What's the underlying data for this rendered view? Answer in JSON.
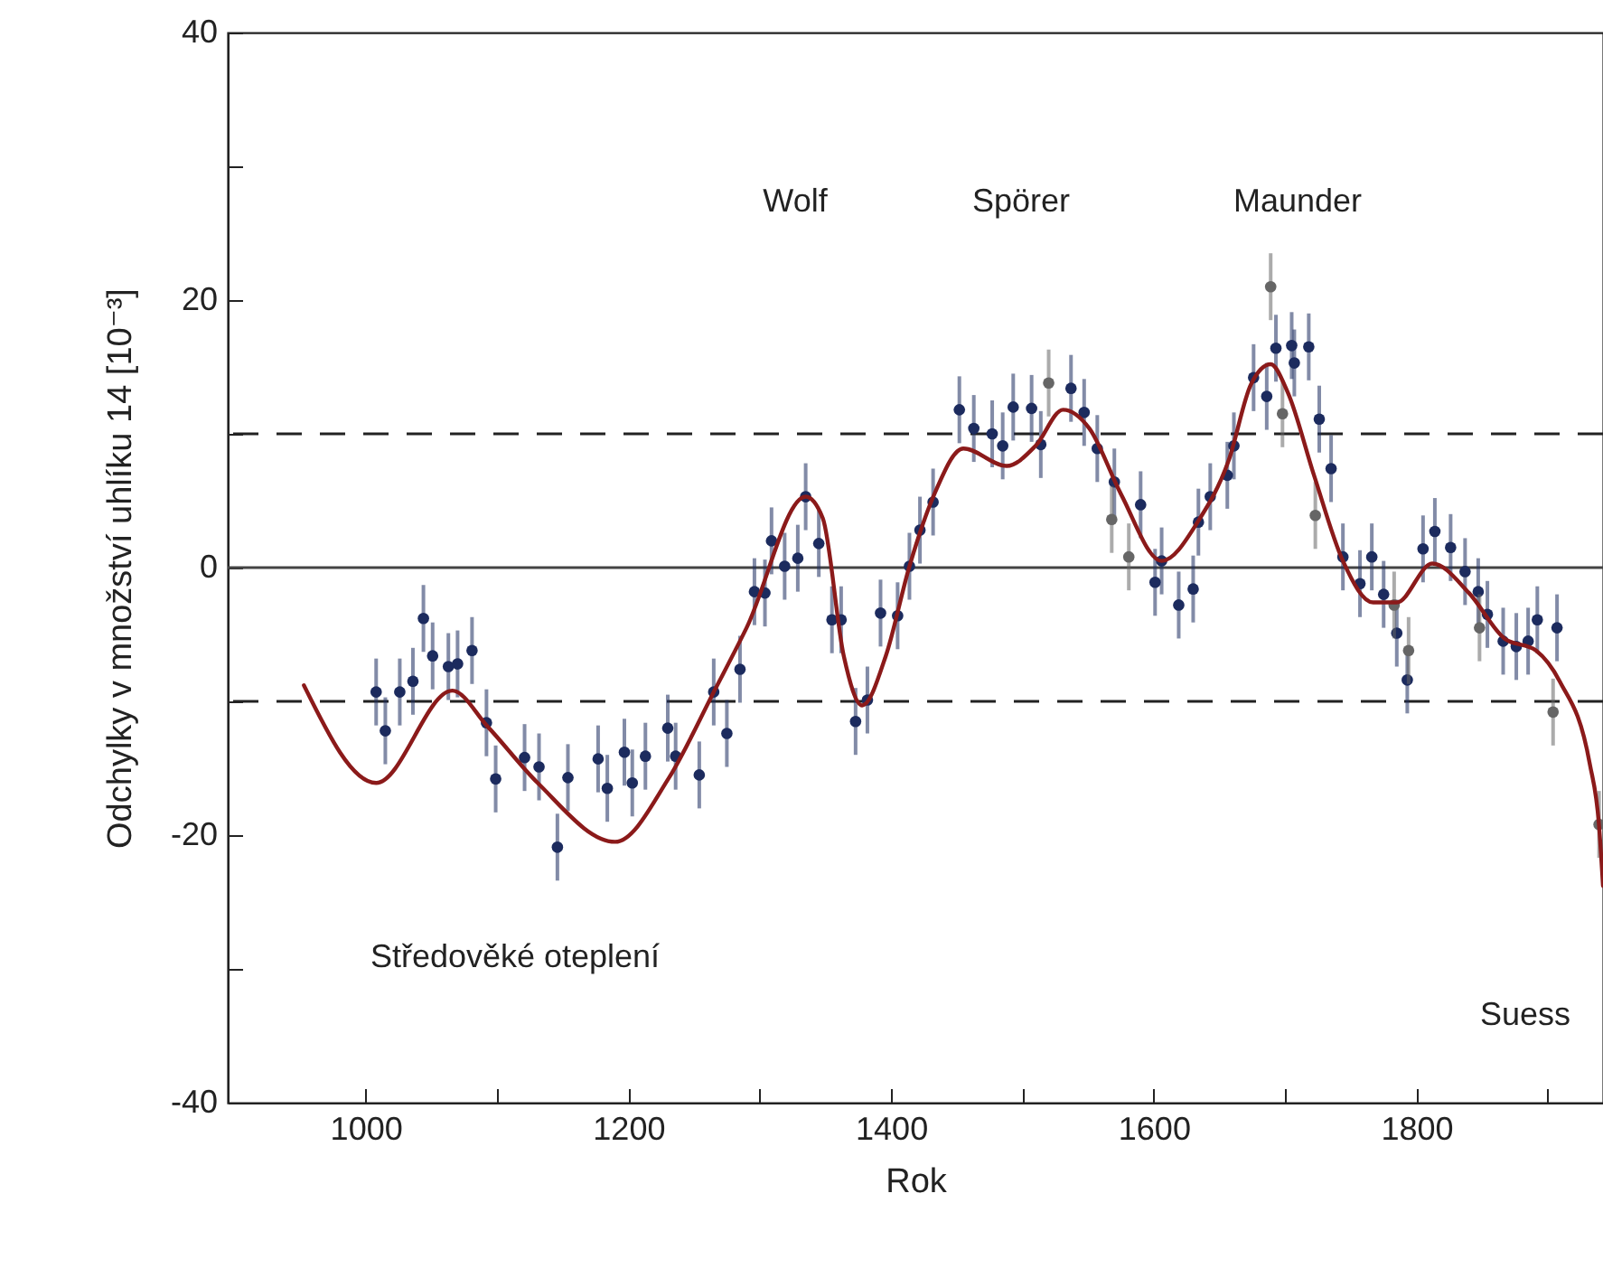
{
  "chart_data": {
    "type": "scatter",
    "xlabel": "Rok",
    "ylabel": "Odchylky v množství uhlíku 14 [10⁻³]",
    "xlim": [
      895,
      1942
    ],
    "ylim": [
      -40,
      40
    ],
    "xticks": [
      1000,
      {
        "value": 1100,
        "label": null
      },
      1200,
      {
        "value": 1300,
        "label": null
      },
      1400,
      {
        "value": 1500,
        "label": null
      },
      1600,
      {
        "value": 1700,
        "label": null
      },
      1800,
      {
        "value": 1900,
        "label": null
      }
    ],
    "yticks": [
      -40,
      {
        "value": -30,
        "label": null
      },
      -20,
      {
        "value": -10,
        "label": null
      },
      0,
      {
        "value": 10,
        "label": null
      },
      20,
      {
        "value": 30,
        "label": null
      },
      40
    ],
    "grid": false,
    "ref_lines": [
      {
        "axis": "y",
        "value": 10,
        "line_style": "dashed",
        "color": "#222222"
      },
      {
        "axis": "y",
        "value": -10,
        "line_style": "dashed",
        "color": "#222222"
      },
      {
        "axis": "y",
        "value": 0,
        "line_style": "solid",
        "color": "#444444"
      }
    ],
    "annotations": [
      "Wolf",
      "Spörer",
      "Maunder",
      "Středověké oteplení",
      "Suess"
    ],
    "series": [
      {
        "marker": "circle",
        "color": "#1c2b5e",
        "x": [
          1008,
          1015,
          1026,
          1036,
          1044,
          1051,
          1063,
          1070,
          1081,
          1092,
          1099,
          1121,
          1132,
          1146,
          1154,
          1177,
          1184,
          1197,
          1203,
          1213,
          1230,
          1236,
          1254,
          1265,
          1275,
          1285,
          1296,
          1304,
          1309,
          1319,
          1329,
          1335,
          1345,
          1355,
          1362,
          1373,
          1382,
          1392,
          1405,
          1414,
          1422,
          1432,
          1452,
          1463,
          1477,
          1485,
          1493,
          1507,
          1514,
          1537,
          1547,
          1557,
          1570,
          1590,
          1601,
          1606,
          1619,
          1630,
          1634,
          1643,
          1656,
          1661,
          1676,
          1686,
          1693,
          1705,
          1707,
          1718,
          1726,
          1735,
          1744,
          1757,
          1766,
          1775,
          1785,
          1793,
          1805,
          1814,
          1826,
          1837,
          1847,
          1854,
          1866,
          1876,
          1885,
          1892,
          1907
        ],
        "values": [
          -9.3,
          -12.2,
          -9.3,
          -8.5,
          -3.8,
          -6.6,
          -7.4,
          -7.2,
          -6.2,
          -11.6,
          -15.8,
          -14.2,
          -14.9,
          -20.9,
          -15.7,
          -14.3,
          -16.5,
          -13.8,
          -16.1,
          -14.1,
          -12.0,
          -14.1,
          -15.5,
          -9.3,
          -12.4,
          -7.6,
          -1.8,
          -1.9,
          2.0,
          0.1,
          0.7,
          5.3,
          1.8,
          -3.9,
          -3.9,
          -11.5,
          -9.9,
          -3.4,
          -3.6,
          0.1,
          2.8,
          4.9,
          11.8,
          10.4,
          10.0,
          9.1,
          12.0,
          11.9,
          9.2,
          13.4,
          11.6,
          8.9,
          6.4,
          4.7,
          -1.1,
          0.5,
          -2.8,
          -1.6,
          3.4,
          5.3,
          6.9,
          9.1,
          14.2,
          12.8,
          16.4,
          16.6,
          15.3,
          16.5,
          11.1,
          7.4,
          0.8,
          -1.2,
          0.8,
          -2.0,
          -4.9,
          -8.4,
          1.4,
          2.7,
          1.5,
          -0.3,
          -1.8,
          -3.5,
          -5.5,
          -5.9,
          -5.5,
          -3.9,
          -4.5
        ],
        "errors": [
          2.5,
          2.5,
          2.5,
          2.5,
          2.5,
          2.5,
          2.5,
          2.5,
          2.5,
          2.5,
          2.5,
          2.5,
          2.5,
          2.5,
          2.5,
          2.5,
          2.5,
          2.5,
          2.5,
          2.5,
          2.5,
          2.5,
          2.5,
          2.5,
          2.5,
          2.5,
          2.5,
          2.5,
          2.5,
          2.5,
          2.5,
          2.5,
          2.5,
          2.5,
          2.5,
          2.5,
          2.5,
          2.5,
          2.5,
          2.5,
          2.5,
          2.5,
          2.5,
          2.5,
          2.5,
          2.5,
          2.5,
          2.5,
          2.5,
          2.5,
          2.5,
          2.5,
          2.5,
          2.5,
          2.5,
          2.5,
          2.5,
          2.5,
          2.5,
          2.5,
          2.5,
          2.5,
          2.5,
          2.5,
          2.5,
          2.5,
          2.5,
          2.5,
          2.5,
          2.5,
          2.5,
          2.5,
          2.5,
          2.5,
          2.5,
          2.5,
          2.5,
          2.5,
          2.5,
          2.5,
          2.5,
          2.5,
          2.5,
          2.5,
          2.5,
          2.5,
          2.5
        ]
      },
      {
        "marker": "circle",
        "color": "#666666",
        "x": [
          1520,
          1568,
          1581,
          1689,
          1698,
          1723,
          1783,
          1794,
          1848,
          1904,
          1939
        ],
        "values": [
          13.8,
          3.6,
          0.8,
          21.0,
          11.5,
          3.9,
          -2.8,
          -6.2,
          -4.5,
          -10.8,
          -19.2
        ],
        "errors": [
          2.5,
          2.5,
          2.5,
          2.5,
          2.5,
          2.5,
          2.5,
          2.5,
          2.5,
          2.5,
          2.5
        ]
      },
      {
        "type": "line",
        "color": "#8b1a1a",
        "x": [
          953,
          1008,
          1066,
          1093,
          1131,
          1190,
          1231,
          1265,
          1290,
          1335,
          1348,
          1364,
          1378,
          1396,
          1414,
          1433,
          1455,
          1488,
          1510,
          1531,
          1551,
          1575,
          1606,
          1634,
          1657,
          1674,
          1689,
          1702,
          1722,
          1744,
          1767,
          1785,
          1812,
          1840,
          1867,
          1891,
          1909,
          1932,
          1939,
          1942
        ],
        "values": [
          -8.8,
          -16.1,
          -9.2,
          -11.9,
          -16.1,
          -20.5,
          -15.7,
          -9.3,
          -4.5,
          5.3,
          3.7,
          -6.6,
          -10.3,
          -6.6,
          0.1,
          5.5,
          8.9,
          7.6,
          9.1,
          11.8,
          10.4,
          5.5,
          0.5,
          3.5,
          8.0,
          13.7,
          15.2,
          13.1,
          6.9,
          0.5,
          -2.6,
          -2.6,
          0.3,
          -1.9,
          -5.3,
          -6.2,
          -8.5,
          -14.7,
          -19.3,
          -23.8
        ]
      }
    ]
  }
}
